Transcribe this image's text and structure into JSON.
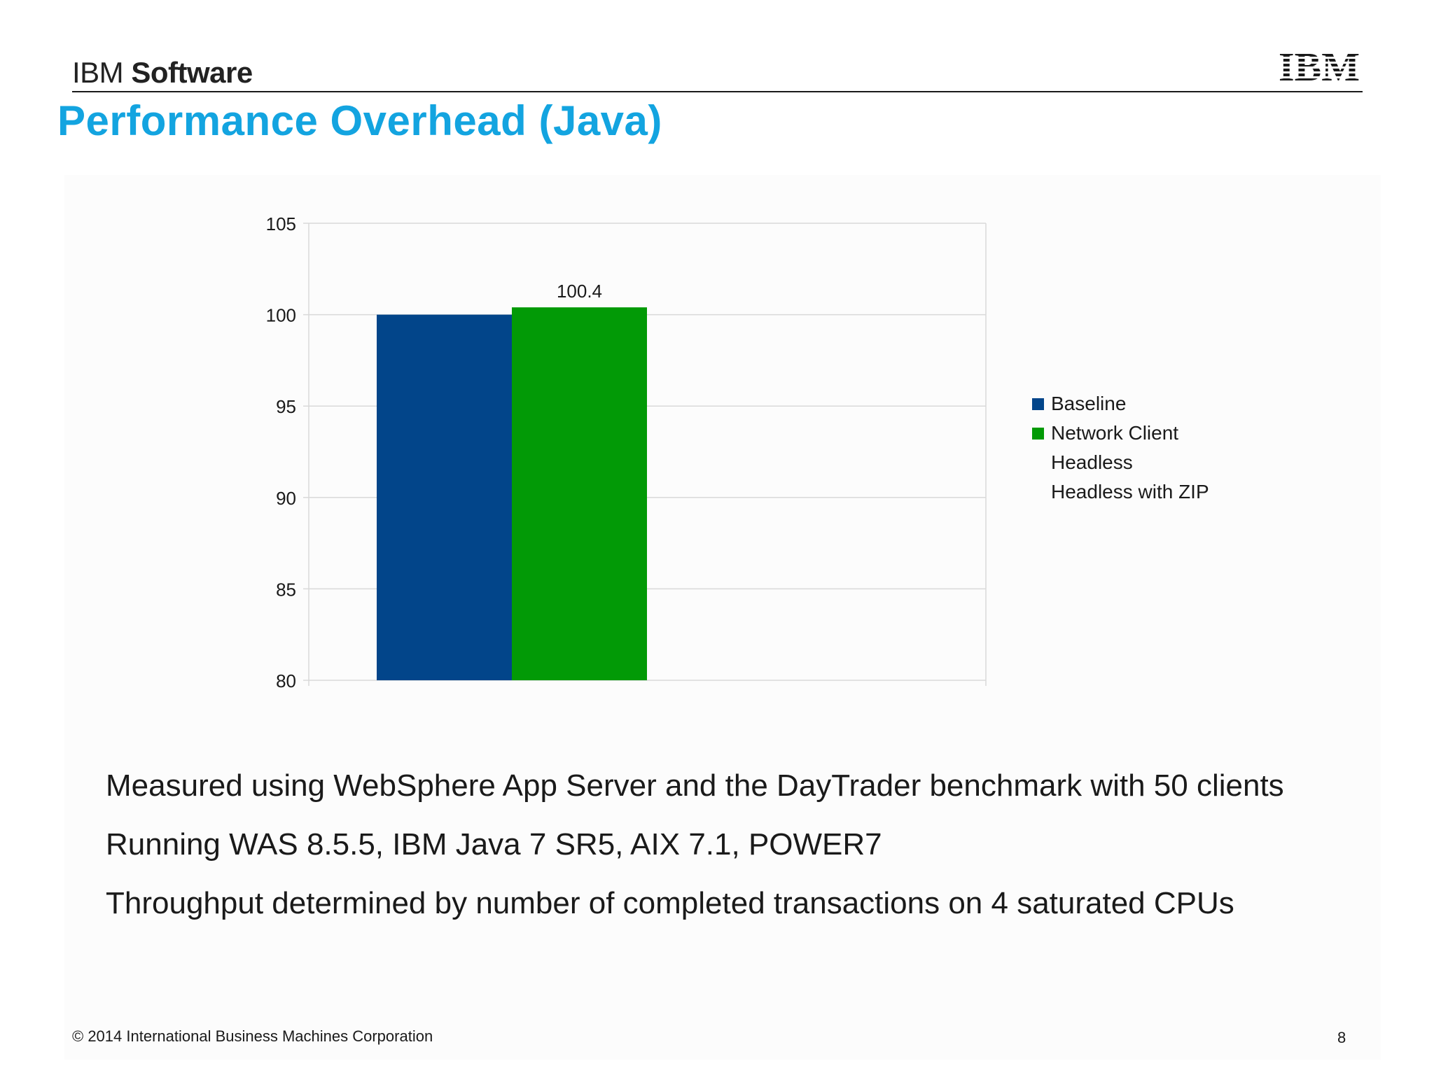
{
  "header": {
    "brand_prefix": "IBM",
    "brand_strong": "Software",
    "logo_text": "IBM"
  },
  "slide": {
    "title": "Performance Overhead (Java)",
    "bullets": [
      "Measured using WebSphere App Server and the DayTrader benchmark with 50 clients",
      "Running WAS 8.5.5, IBM Java 7 SR5, AIX 7.1, POWER7",
      "Throughput determined by number of completed transactions on 4 saturated CPUs"
    ]
  },
  "footer": {
    "copyright": "© 2014 International Business Machines Corporation",
    "page_number": "8"
  },
  "chart_data": {
    "type": "bar",
    "title": "",
    "xlabel": "",
    "ylabel": "",
    "ylim": [
      80,
      105
    ],
    "yticks": [
      80,
      85,
      90,
      95,
      100,
      105
    ],
    "grid": true,
    "legend_position": "right",
    "categories": [
      ""
    ],
    "series": [
      {
        "name": "Baseline",
        "values": [
          100
        ],
        "color": "#02458a",
        "label": ""
      },
      {
        "name": "Network Client",
        "values": [
          100.4
        ],
        "color": "#029a06",
        "label": "100.4"
      },
      {
        "name": "Headless",
        "values": [
          null
        ],
        "color": "",
        "label": ""
      },
      {
        "name": "Headless with ZIP",
        "values": [
          null
        ],
        "color": "",
        "label": ""
      }
    ]
  }
}
